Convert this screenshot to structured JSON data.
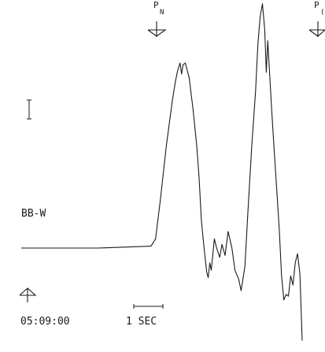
{
  "chart_data": {
    "type": "line",
    "title": "",
    "xlabel": "",
    "ylabel": "",
    "series": [
      {
        "values": [
          [
            0,
            0.0
          ],
          [
            1.0,
            0.0
          ],
          [
            1.7,
            0.01
          ],
          [
            1.76,
            0.05
          ],
          [
            1.82,
            0.25
          ],
          [
            1.9,
            0.55
          ],
          [
            1.98,
            0.8
          ],
          [
            2.02,
            0.9
          ],
          [
            2.05,
            0.96
          ],
          [
            2.08,
            1.0
          ],
          [
            2.1,
            0.94
          ],
          [
            2.12,
            0.99
          ],
          [
            2.15,
            1.0
          ],
          [
            2.2,
            0.92
          ],
          [
            2.25,
            0.75
          ],
          [
            2.3,
            0.55
          ],
          [
            2.33,
            0.38
          ],
          [
            2.36,
            0.15
          ],
          [
            2.4,
            -0.02
          ],
          [
            2.43,
            -0.13
          ],
          [
            2.45,
            -0.16
          ],
          [
            2.47,
            -0.08
          ],
          [
            2.49,
            -0.12
          ],
          [
            2.53,
            0.05
          ],
          [
            2.56,
            0.0
          ],
          [
            2.6,
            -0.05
          ],
          [
            2.63,
            0.02
          ],
          [
            2.67,
            -0.04
          ],
          [
            2.71,
            0.09
          ],
          [
            2.76,
            0.0
          ],
          [
            2.8,
            -0.12
          ],
          [
            2.85,
            -0.17
          ],
          [
            2.88,
            -0.23
          ],
          [
            2.93,
            -0.1
          ],
          [
            2.97,
            0.2
          ],
          [
            3.02,
            0.55
          ],
          [
            3.07,
            0.85
          ],
          [
            3.1,
            1.1
          ],
          [
            3.13,
            1.25
          ],
          [
            3.16,
            1.32
          ],
          [
            3.19,
            1.18
          ],
          [
            3.21,
            0.95
          ],
          [
            3.23,
            1.12
          ],
          [
            3.26,
            0.9
          ],
          [
            3.28,
            0.75
          ],
          [
            3.31,
            0.55
          ],
          [
            3.35,
            0.3
          ],
          [
            3.38,
            0.1
          ],
          [
            3.41,
            -0.15
          ],
          [
            3.44,
            -0.28
          ],
          [
            3.47,
            -0.25
          ],
          [
            3.5,
            -0.26
          ],
          [
            3.53,
            -0.15
          ],
          [
            3.56,
            -0.2
          ],
          [
            3.59,
            -0.08
          ],
          [
            3.62,
            -0.03
          ],
          [
            3.65,
            -0.14
          ],
          [
            3.68,
            -0.5
          ]
        ]
      }
    ],
    "annotations": {
      "phase_markers": [
        {
          "label": "P",
          "sub": "N",
          "x": 2.06
        },
        {
          "label": "P",
          "sub": "(",
          "x": 3.72
        }
      ],
      "amplitude_scale_mark": "I",
      "station_label": "BB-W",
      "time_marker_label": "05:09:00",
      "time_scale_label": "1 SEC"
    }
  }
}
